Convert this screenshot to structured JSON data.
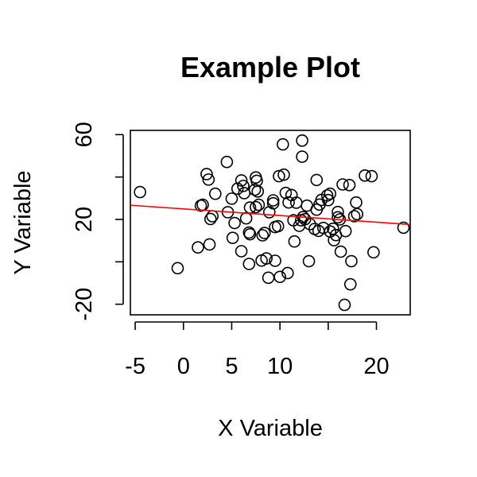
{
  "chart_data": {
    "type": "scatter",
    "title": "Example Plot",
    "xlabel": "X Variable",
    "ylabel": "Y Variable",
    "xlim": [
      -5.5,
      23.5
    ],
    "ylim": [
      -25,
      62
    ],
    "xticks": [
      -5,
      0,
      5,
      10,
      15,
      20
    ],
    "xtick_labels": [
      "-5",
      "0",
      "5",
      "10",
      "",
      "20"
    ],
    "yticks": [
      -20,
      0,
      20,
      40,
      60
    ],
    "ytick_labels": [
      "-20",
      "",
      "20",
      "",
      "60"
    ],
    "grid": false,
    "fit_line": {
      "color": "#ff0000",
      "x": [
        -5.5,
        23.5
      ],
      "y": [
        26.7,
        17.6
      ]
    },
    "point_color": "#000000",
    "points": [
      [
        -4.5,
        32.9
      ],
      [
        -0.6,
        -3.0
      ],
      [
        1.5,
        6.8
      ],
      [
        1.8,
        26.5
      ],
      [
        2.0,
        26.9
      ],
      [
        2.4,
        41.4
      ],
      [
        2.6,
        38.8
      ],
      [
        2.8,
        20.2
      ],
      [
        2.7,
        8.2
      ],
      [
        3.0,
        21.5
      ],
      [
        3.3,
        32.1
      ],
      [
        4.5,
        47.1
      ],
      [
        4.6,
        23.4
      ],
      [
        5.0,
        29.8
      ],
      [
        5.1,
        11.3
      ],
      [
        5.3,
        18.3
      ],
      [
        5.6,
        34.5
      ],
      [
        6.0,
        38.4
      ],
      [
        6.2,
        35.8
      ],
      [
        6.3,
        32.4
      ],
      [
        6.0,
        5.0
      ],
      [
        6.5,
        20.5
      ],
      [
        6.8,
        13.8
      ],
      [
        6.9,
        13.0
      ],
      [
        6.8,
        -1.0
      ],
      [
        6.9,
        25.6
      ],
      [
        7.4,
        34.0
      ],
      [
        7.5,
        39.8
      ],
      [
        7.5,
        25.8
      ],
      [
        7.6,
        38.2
      ],
      [
        7.8,
        26.9
      ],
      [
        7.7,
        33.2
      ],
      [
        8.1,
        0.6
      ],
      [
        8.2,
        12.5
      ],
      [
        8.4,
        13.6
      ],
      [
        8.6,
        1.6
      ],
      [
        8.9,
        23.4
      ],
      [
        8.8,
        -7.5
      ],
      [
        9.3,
        27.6
      ],
      [
        9.5,
        16.4
      ],
      [
        9.3,
        29.0
      ],
      [
        9.5,
        0.5
      ],
      [
        9.8,
        16.8
      ],
      [
        9.9,
        40.4
      ],
      [
        10.0,
        -7.1
      ],
      [
        10.3,
        55.4
      ],
      [
        10.4,
        41.1
      ],
      [
        10.6,
        32.5
      ],
      [
        10.8,
        -5.3
      ],
      [
        10.9,
        28.0
      ],
      [
        11.2,
        31.5
      ],
      [
        11.4,
        19.6
      ],
      [
        11.5,
        9.6
      ],
      [
        11.7,
        27.9
      ],
      [
        12.0,
        17.0
      ],
      [
        12.2,
        19.6
      ],
      [
        12.3,
        57.2
      ],
      [
        12.3,
        49.6
      ],
      [
        12.4,
        21.1
      ],
      [
        12.6,
        20.1
      ],
      [
        12.8,
        26.5
      ],
      [
        13.0,
        0.3
      ],
      [
        13.1,
        17.8
      ],
      [
        13.6,
        15.5
      ],
      [
        13.8,
        24.6
      ],
      [
        13.8,
        38.6
      ],
      [
        14.0,
        14.6
      ],
      [
        14.1,
        27.0
      ],
      [
        14.3,
        29.2
      ],
      [
        14.5,
        16.0
      ],
      [
        14.9,
        31.3
      ],
      [
        15.0,
        29.1
      ],
      [
        15.2,
        32.1
      ],
      [
        15.2,
        14.3
      ],
      [
        15.5,
        15.6
      ],
      [
        15.6,
        10.2
      ],
      [
        15.8,
        12.6
      ],
      [
        16.0,
        23.5
      ],
      [
        16.0,
        21.0
      ],
      [
        16.2,
        20.0
      ],
      [
        16.3,
        4.8
      ],
      [
        16.5,
        36.5
      ],
      [
        16.8,
        14.5
      ],
      [
        16.7,
        -20.3
      ],
      [
        17.2,
        36.2
      ],
      [
        17.3,
        -10.6
      ],
      [
        17.4,
        0.3
      ],
      [
        17.7,
        21.5
      ],
      [
        17.9,
        28.0
      ],
      [
        18.0,
        22.5
      ],
      [
        18.8,
        40.7
      ],
      [
        19.5,
        40.4
      ],
      [
        19.7,
        4.5
      ],
      [
        22.8,
        16.1
      ]
    ]
  }
}
